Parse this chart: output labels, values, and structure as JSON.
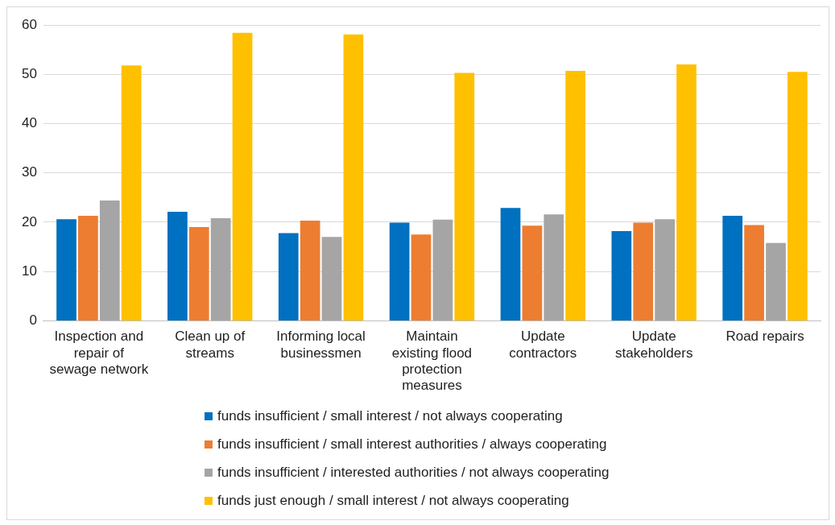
{
  "chart_data": {
    "type": "bar",
    "categories": [
      "Inspection and repair of sewage network",
      "Clean up of streams",
      "Informing local businessmen",
      "Maintain existing flood protection measures",
      "Update contractors",
      "Update stakeholders",
      "Road repairs"
    ],
    "series": [
      {
        "name": "funds insufficient / small interest / not always cooperating",
        "color": "#0070c0",
        "values": [
          20.6,
          22.1,
          17.8,
          19.9,
          22.9,
          18.2,
          21.3
        ]
      },
      {
        "name": "funds insufficient / small interest authorities / always cooperating",
        "color": "#ed7d31",
        "values": [
          21.3,
          19.0,
          20.3,
          17.5,
          19.3,
          19.9,
          19.4
        ]
      },
      {
        "name": "funds insufficient / interested authorities / not always cooperating",
        "color": "#a5a5a5",
        "values": [
          24.4,
          20.8,
          17.0,
          20.5,
          21.6,
          20.6,
          15.8
        ]
      },
      {
        "name": "funds just enough / small interest / not always cooperating",
        "color": "#ffc000",
        "values": [
          51.8,
          58.4,
          58.1,
          50.3,
          50.7,
          52.0,
          50.5
        ]
      }
    ],
    "ylim": [
      0,
      60
    ],
    "yticks": [
      0,
      10,
      20,
      30,
      40,
      50,
      60
    ],
    "grid": "y",
    "legend": "bottom"
  }
}
